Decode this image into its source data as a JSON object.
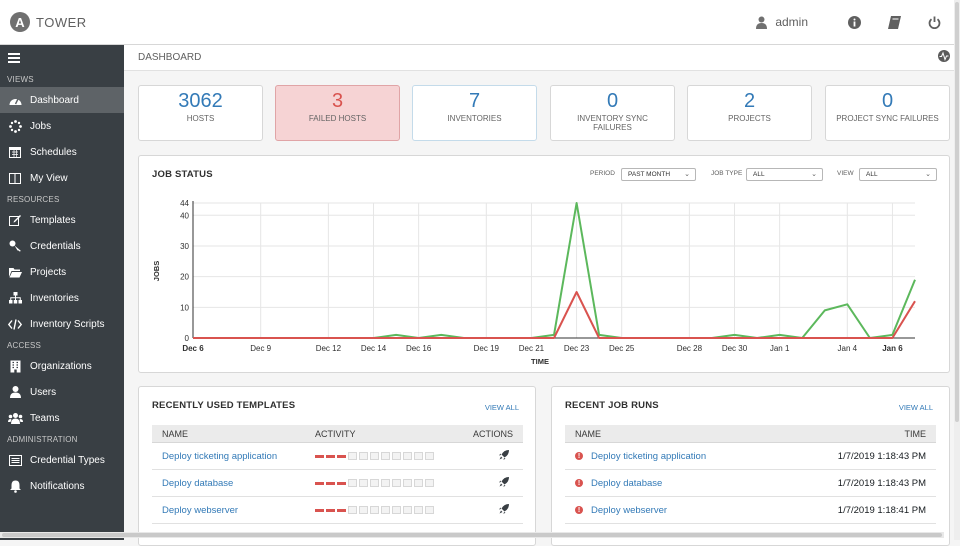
{
  "brand": {
    "name": "TOWER",
    "logo_letter": "A"
  },
  "top": {
    "user": "admin"
  },
  "sidebar": {
    "sections": {
      "views": "VIEWS",
      "resources": "RESOURCES",
      "access": "ACCESS",
      "administration": "ADMINISTRATION"
    },
    "items": {
      "dashboard": "Dashboard",
      "jobs": "Jobs",
      "schedules": "Schedules",
      "myview": "My View",
      "templates": "Templates",
      "credentials": "Credentials",
      "projects": "Projects",
      "inventories": "Inventories",
      "inventory_scripts": "Inventory Scripts",
      "organizations": "Organizations",
      "users": "Users",
      "teams": "Teams",
      "credential_types": "Credential Types",
      "notifications": "Notifications"
    }
  },
  "breadcrumb": "DASHBOARD",
  "cards": [
    {
      "num": "3062",
      "label": "HOSTS"
    },
    {
      "num": "3",
      "label": "FAILED HOSTS"
    },
    {
      "num": "7",
      "label": "INVENTORIES"
    },
    {
      "num": "0",
      "label": "INVENTORY SYNC FAILURES"
    },
    {
      "num": "2",
      "label": "PROJECTS"
    },
    {
      "num": "0",
      "label": "PROJECT SYNC FAILURES"
    }
  ],
  "job_status": {
    "title": "JOB STATUS",
    "period_label": "PERIOD",
    "period_value": "PAST MONTH",
    "jobtype_label": "JOB TYPE",
    "jobtype_value": "ALL",
    "view_label": "VIEW",
    "view_value": "ALL"
  },
  "chart_data": {
    "type": "line",
    "xlabel": "TIME",
    "ylabel": "JOBS",
    "ylim": [
      0,
      44
    ],
    "y_ticks": [
      0,
      10,
      20,
      30,
      40,
      44
    ],
    "x_tick_labels": [
      "Dec 6",
      "Dec 9",
      "Dec 12",
      "Dec 14",
      "Dec 16",
      "Dec 19",
      "Dec 21",
      "Dec 23",
      "Dec 25",
      "Dec 28",
      "Dec 30",
      "Jan 1",
      "Jan 4",
      "Jan 6"
    ],
    "x_tick_positions": [
      0,
      3,
      6,
      8,
      10,
      13,
      15,
      17,
      19,
      22,
      24,
      26,
      29,
      31
    ],
    "grid": true,
    "series": [
      {
        "color": "#5cb85c",
        "values": [
          0,
          0,
          0,
          0,
          0,
          0,
          0,
          0,
          0,
          1,
          0,
          1,
          0,
          0,
          0,
          0,
          1,
          44,
          1,
          0,
          0,
          0,
          0,
          0,
          1,
          0,
          1,
          0,
          9,
          11,
          0,
          1,
          19
        ]
      },
      {
        "color": "#d9534f",
        "values": [
          0,
          0,
          0,
          0,
          0,
          0,
          0,
          0,
          0,
          0,
          0,
          0,
          0,
          0,
          0,
          0,
          0,
          15,
          0,
          0,
          0,
          0,
          0,
          0,
          0,
          0,
          0,
          0,
          0,
          0,
          0,
          0,
          12
        ]
      }
    ]
  },
  "templates": {
    "title": "RECENTLY USED TEMPLATES",
    "view_all": "VIEW ALL",
    "cols": {
      "name": "NAME",
      "activity": "ACTIVITY",
      "actions": "ACTIONS"
    },
    "rows": [
      {
        "name": "Deploy ticketing application",
        "failed": 3,
        "total": 11
      },
      {
        "name": "Deploy database",
        "failed": 3,
        "total": 11
      },
      {
        "name": "Deploy webserver",
        "failed": 3,
        "total": 11
      }
    ]
  },
  "job_runs": {
    "title": "RECENT JOB RUNS",
    "view_all": "VIEW ALL",
    "cols": {
      "name": "NAME",
      "time": "TIME"
    },
    "rows": [
      {
        "name": "Deploy ticketing application",
        "time": "1/7/2019 1:18:43 PM"
      },
      {
        "name": "Deploy database",
        "time": "1/7/2019 1:18:43 PM"
      },
      {
        "name": "Deploy webserver",
        "time": "1/7/2019 1:18:41 PM"
      }
    ]
  },
  "colors": {
    "sidebar": "#393f44",
    "accent": "#337ab7",
    "success": "#5cb85c",
    "failed": "#d9534f"
  }
}
